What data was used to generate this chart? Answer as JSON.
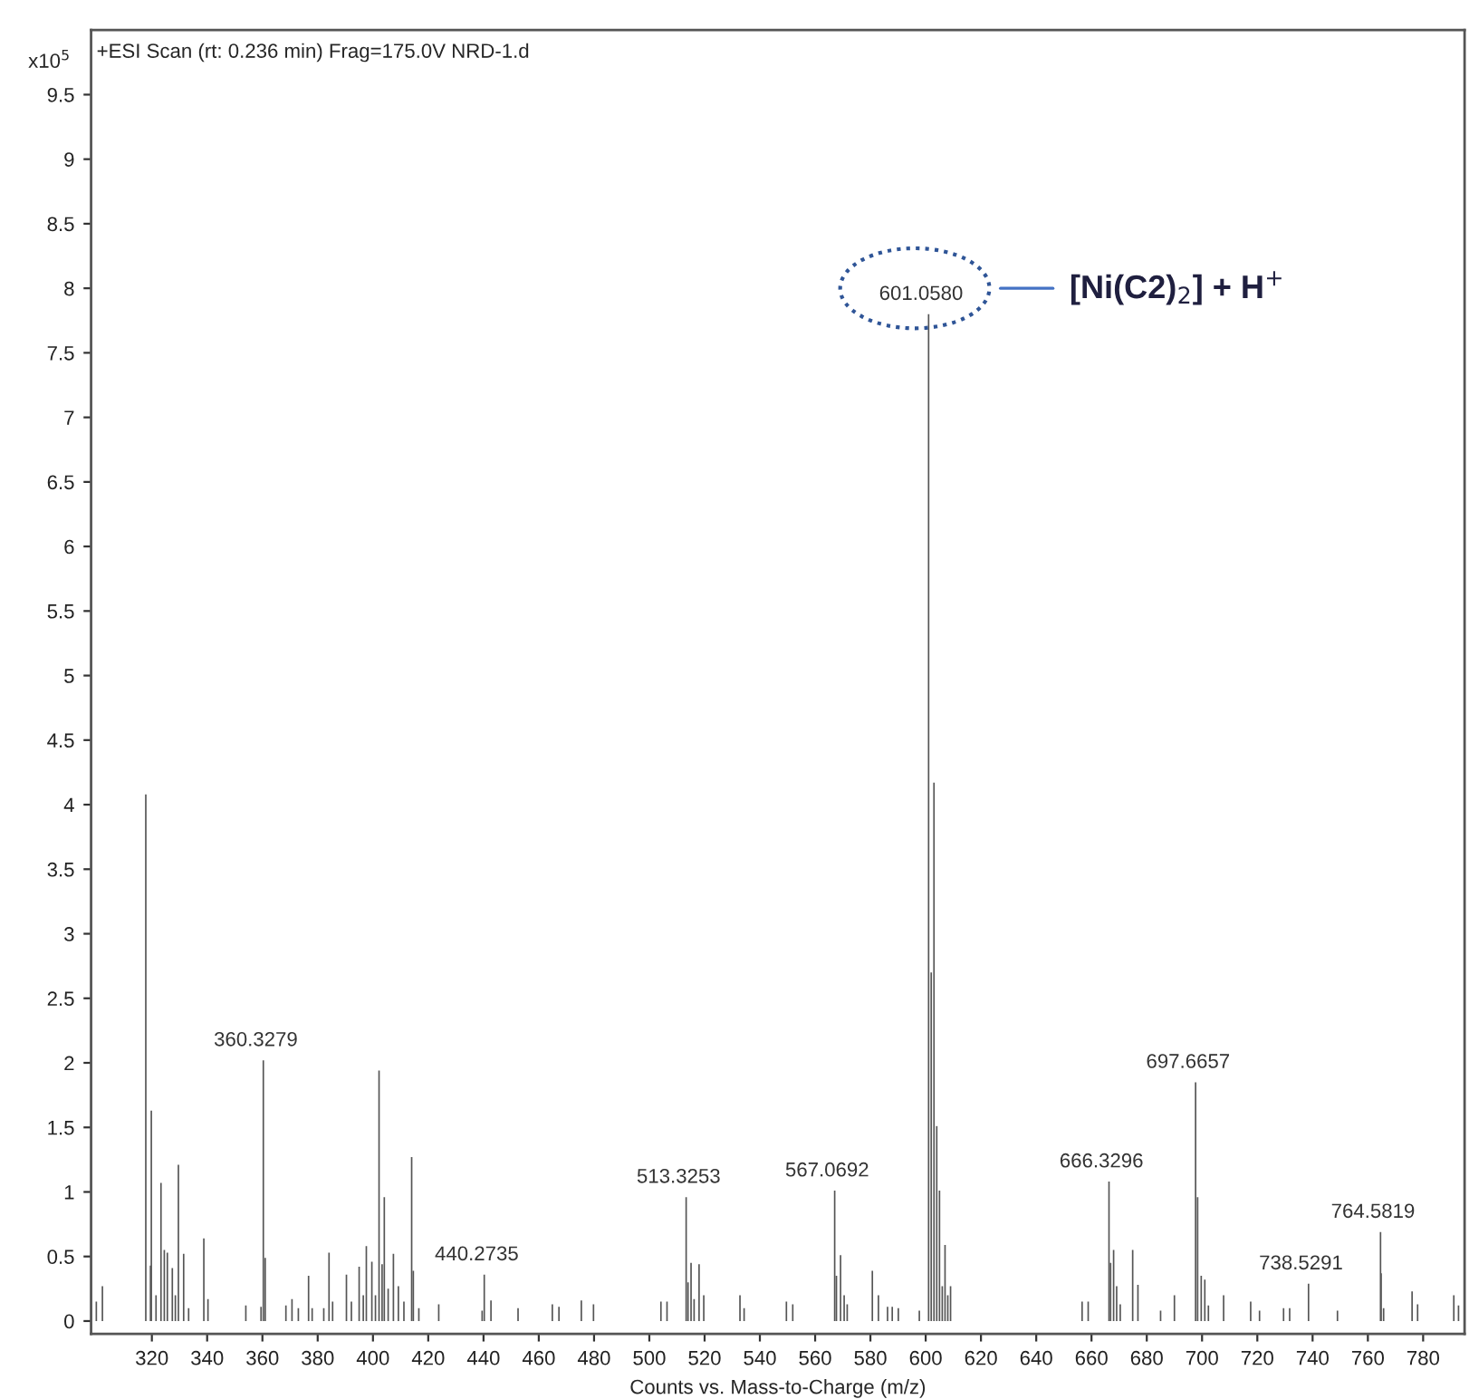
{
  "chart_data": {
    "type": "bar",
    "title": "+ESI Scan (rt: 0.236 min) Frag=175.0V NRD-1.d",
    "xlabel": "Counts vs. Mass-to-Charge (m/z)",
    "ylabel": "x10$^{5}$",
    "x": [
      299.9,
      302.1,
      317.8,
      319.5,
      319.8,
      321.5,
      323.3,
      324.5,
      325.6,
      327.4,
      328.5,
      329.6,
      331.5,
      333.3,
      338.8,
      340.3,
      354,
      359.5,
      360.3279,
      361,
      368.5,
      370.7,
      373,
      376.7,
      378,
      382.2,
      384.1,
      385.4,
      390.4,
      392.2,
      395,
      396.5,
      397.6,
      399.6,
      400.9,
      402.2,
      403.3,
      404.1,
      405.5,
      407.4,
      409.2,
      411.2,
      414,
      414.6,
      416.6,
      423.8,
      439.5,
      440.2735,
      442.7,
      452.5,
      464.9,
      467.3,
      475.4,
      479.8,
      504.2,
      506.4,
      513.3253,
      514,
      515.1,
      516.2,
      518,
      519.7,
      532.8,
      534.3,
      549.6,
      551.9,
      567.0692,
      567.7,
      569.2,
      570.5,
      571.6,
      580.7,
      582.9,
      586.2,
      587.9,
      590.1,
      597.7,
      601.058,
      602,
      603,
      604,
      605,
      606,
      607,
      608,
      609,
      656.6,
      658.8,
      666.3296,
      666.9,
      668,
      669.1,
      670.4,
      674.9,
      676.8,
      685,
      690,
      697.6657,
      698.4,
      699.7,
      701,
      702.3,
      707.8,
      717.6,
      720.8,
      729.5,
      731.7,
      738.5291,
      749,
      764.5819,
      764.8,
      765.7,
      776,
      778,
      791.1,
      792.8
    ],
    "values": [
      0.15,
      0.27,
      4.08,
      0.43,
      1.63,
      0.2,
      1.07,
      0.55,
      0.53,
      0.41,
      0.2,
      1.21,
      0.52,
      0.1,
      0.64,
      0.17,
      0.12,
      0.11,
      2.02,
      0.49,
      0.12,
      0.17,
      0.1,
      0.35,
      0.1,
      0.1,
      0.53,
      0.15,
      0.36,
      0.15,
      0.42,
      0.2,
      0.58,
      0.46,
      0.2,
      1.94,
      0.44,
      0.96,
      0.25,
      0.52,
      0.27,
      0.15,
      1.27,
      0.39,
      0.1,
      0.13,
      0.08,
      0.36,
      0.16,
      0.1,
      0.13,
      0.11,
      0.16,
      0.13,
      0.15,
      0.15,
      0.96,
      0.3,
      0.45,
      0.17,
      0.44,
      0.2,
      0.2,
      0.1,
      0.15,
      0.13,
      1.01,
      0.35,
      0.51,
      0.2,
      0.13,
      0.39,
      0.2,
      0.11,
      0.11,
      0.1,
      0.08,
      7.8,
      2.7,
      4.17,
      1.51,
      1.01,
      0.27,
      0.59,
      0.2,
      0.27,
      0.15,
      0.15,
      1.08,
      0.45,
      0.55,
      0.27,
      0.13,
      0.55,
      0.28,
      0.08,
      0.2,
      1.85,
      0.96,
      0.35,
      0.32,
      0.12,
      0.2,
      0.15,
      0.08,
      0.1,
      0.1,
      0.29,
      0.08,
      0.69,
      0.37,
      0.1,
      0.23,
      0.13,
      0.2,
      0.12
    ],
    "color": "#555555",
    "xlim": [
      298,
      795
    ],
    "ylim": [
      -0.1,
      10
    ],
    "xticks": [
      320,
      340,
      360,
      380,
      400,
      420,
      440,
      460,
      480,
      500,
      520,
      540,
      560,
      580,
      600,
      620,
      640,
      660,
      680,
      700,
      720,
      740,
      760,
      780
    ],
    "yticks": [
      0,
      0.5,
      1,
      1.5,
      2,
      2.5,
      3,
      3.5,
      4,
      4.5,
      5,
      5.5,
      6,
      6.5,
      7,
      7.5,
      8,
      8.5,
      9,
      9.5
    ],
    "grid": false,
    "annotations": [
      {
        "text": "360.3279",
        "x": 360.3279,
        "y": 2.02
      },
      {
        "text": "440.2735",
        "x": 440.2735,
        "y": 0.36
      },
      {
        "text": "513.3253",
        "x": 513.3253,
        "y": 0.96
      },
      {
        "text": "567.0692",
        "x": 567.0692,
        "y": 1.01
      },
      {
        "text": "601.0580",
        "x": 601.058,
        "y": 7.8
      },
      {
        "text": "666.3296",
        "x": 666.3296,
        "y": 1.08
      },
      {
        "text": "697.6657",
        "x": 697.6657,
        "y": 1.85
      },
      {
        "text": "738.5291",
        "x": 738.5291,
        "y": 0.29
      },
      {
        "text": "764.5819",
        "x": 764.5819,
        "y": 0.69
      },
      "[Ni(C2)$_{2}$] + H$^{+}$"
    ]
  }
}
